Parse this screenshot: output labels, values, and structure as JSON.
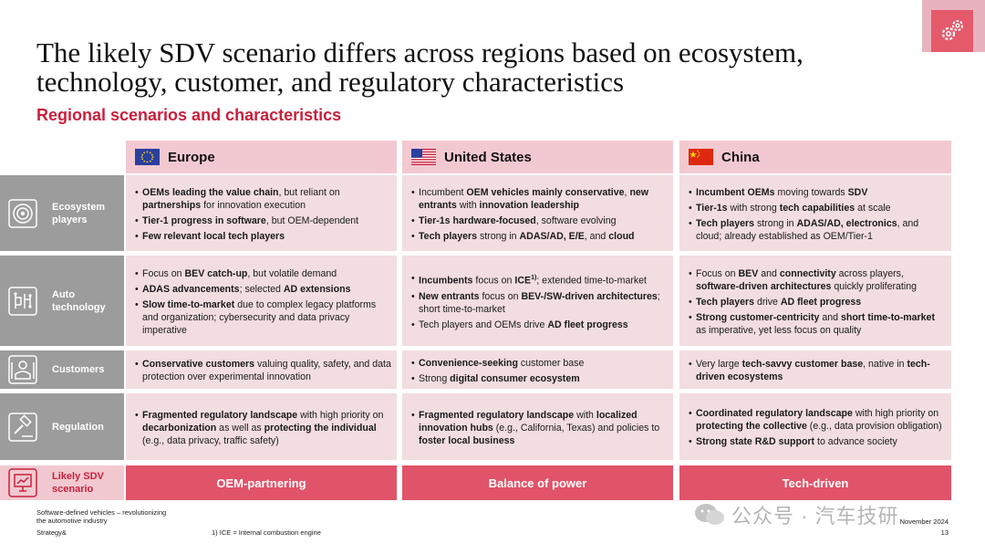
{
  "title": "The likely SDV scenario differs across regions based on ecosystem, technology, customer, and regulatory characteristics",
  "subtitle": "Regional scenarios and characteristics",
  "columns": [
    {
      "label": "Europe",
      "flag": "eu-flag"
    },
    {
      "label": "United States",
      "flag": "us-flag"
    },
    {
      "label": "China",
      "flag": "china-flag"
    }
  ],
  "rows": [
    {
      "label": "Ecosystem players",
      "icon": "ecosystem-icon"
    },
    {
      "label": "Auto technology",
      "icon": "circuit-icon"
    },
    {
      "label": "Customers",
      "icon": "customer-icon"
    },
    {
      "label": "Regulation",
      "icon": "gavel-icon"
    }
  ],
  "scenario": {
    "label": "Likely SDV scenario",
    "icon": "presentation-icon",
    "values": [
      "OEM-partnering",
      "Balance of power",
      "Tech-driven"
    ]
  },
  "cells": {
    "eco_eu": [
      [
        {
          "t": "OEMs leading the value chain",
          "b": true
        },
        {
          "t": ", but reliant on "
        },
        {
          "t": "partnerships",
          "b": true
        },
        {
          "t": " for innovation execution"
        }
      ],
      [
        {
          "t": "Tier-1 progress in software",
          "b": true
        },
        {
          "t": ", but OEM-dependent"
        }
      ],
      [
        {
          "t": "Few relevant local tech players",
          "b": true
        }
      ]
    ],
    "eco_us": [
      [
        {
          "t": "Incumbent "
        },
        {
          "t": "OEM vehicles mainly conservative",
          "b": true
        },
        {
          "t": ", "
        },
        {
          "t": "new entrants",
          "b": true
        },
        {
          "t": " with "
        },
        {
          "t": "innovation leadership",
          "b": true
        }
      ],
      [
        {
          "t": "Tier-1s hardware-focused",
          "b": true
        },
        {
          "t": ", software evolving"
        }
      ],
      [
        {
          "t": "Tech players",
          "b": true
        },
        {
          "t": " strong in "
        },
        {
          "t": "ADAS/AD, E/E",
          "b": true
        },
        {
          "t": ", and "
        },
        {
          "t": "cloud",
          "b": true
        }
      ]
    ],
    "eco_cn": [
      [
        {
          "t": "Incumbent OEMs",
          "b": true
        },
        {
          "t": " moving towards "
        },
        {
          "t": "SDV",
          "b": true
        }
      ],
      [
        {
          "t": "Tier-1s",
          "b": true
        },
        {
          "t": " with strong "
        },
        {
          "t": "tech capabilities",
          "b": true
        },
        {
          "t": " at scale"
        }
      ],
      [
        {
          "t": "Tech players",
          "b": true
        },
        {
          "t": " strong in "
        },
        {
          "t": "ADAS/AD, electronics",
          "b": true
        },
        {
          "t": ", and cloud; already established as OEM/Tier-1"
        }
      ]
    ],
    "tech_eu": [
      [
        {
          "t": "Focus on "
        },
        {
          "t": "BEV catch-up",
          "b": true
        },
        {
          "t": ", but volatile demand"
        }
      ],
      [
        {
          "t": "ADAS advancements",
          "b": true
        },
        {
          "t": "; selected "
        },
        {
          "t": "AD extensions",
          "b": true
        }
      ],
      [
        {
          "t": "Slow time-to-market",
          "b": true
        },
        {
          "t": " due to complex legacy platforms and organization; cybersecurity and data privacy imperative"
        }
      ]
    ],
    "tech_us": [
      [
        {
          "t": "Incumbents",
          "b": true
        },
        {
          "t": " focus on "
        },
        {
          "t": "ICE",
          "b": true
        },
        {
          "t": "1)",
          "sup": true
        },
        {
          "t": "; extended time-to-market"
        }
      ],
      [
        {
          "t": "New entrants",
          "b": true
        },
        {
          "t": " focus on "
        },
        {
          "t": "BEV-/SW-driven architectures",
          "b": true
        },
        {
          "t": "; short time-to-market"
        }
      ],
      [
        {
          "t": "Tech players and OEMs drive "
        },
        {
          "t": "AD fleet progress",
          "b": true
        }
      ]
    ],
    "tech_cn": [
      [
        {
          "t": "Focus on "
        },
        {
          "t": "BEV",
          "b": true
        },
        {
          "t": " and "
        },
        {
          "t": "connectivity",
          "b": true
        },
        {
          "t": " across players, "
        },
        {
          "t": "software-driven architectures",
          "b": true
        },
        {
          "t": " quickly proliferating"
        }
      ],
      [
        {
          "t": "Tech players",
          "b": true
        },
        {
          "t": " drive "
        },
        {
          "t": "AD fleet progress",
          "b": true
        }
      ],
      [
        {
          "t": "Strong customer-centricity",
          "b": true
        },
        {
          "t": " and "
        },
        {
          "t": "short time-to-market",
          "b": true
        },
        {
          "t": " as imperative, yet less focus on quality"
        }
      ]
    ],
    "cust_eu": [
      [
        {
          "t": "Conservative customers",
          "b": true
        },
        {
          "t": " valuing quality, safety, and data protection over experimental innovation"
        }
      ]
    ],
    "cust_us": [
      [
        {
          "t": "Convenience-seeking",
          "b": true
        },
        {
          "t": " customer base"
        }
      ],
      [
        {
          "t": "Strong "
        },
        {
          "t": "digital consumer ecosystem",
          "b": true
        }
      ]
    ],
    "cust_cn": [
      [
        {
          "t": "Very large "
        },
        {
          "t": "tech-savvy customer base",
          "b": true
        },
        {
          "t": ", native in "
        },
        {
          "t": "tech-driven ecosystems",
          "b": true
        }
      ]
    ],
    "reg_eu": [
      [
        {
          "t": "Fragmented regulatory landscape",
          "b": true
        },
        {
          "t": " with high priority on "
        },
        {
          "t": "decarbonization",
          "b": true
        },
        {
          "t": " as well as "
        },
        {
          "t": "protecting the individual",
          "b": true
        },
        {
          "t": " (e.g., data privacy, traffic safety)"
        }
      ]
    ],
    "reg_us": [
      [
        {
          "t": "Fragmented regulatory landscape",
          "b": true
        },
        {
          "t": " with "
        },
        {
          "t": "localized innovation hubs",
          "b": true
        },
        {
          "t": " (e.g., California, Texas) and policies to "
        },
        {
          "t": "foster local business",
          "b": true
        }
      ]
    ],
    "reg_cn": [
      [
        {
          "t": "Coordinated regulatory landscape",
          "b": true
        },
        {
          "t": " with high priority on "
        },
        {
          "t": "protecting the collective",
          "b": true
        },
        {
          "t": " (e.g., data provision obligation)"
        }
      ],
      [
        {
          "t": "Strong state R&D support",
          "b": true
        },
        {
          "t": " to advance society"
        }
      ]
    ]
  },
  "footer": {
    "left_line1": "Software-defined vehicles – revolutionizing",
    "left_line2": "the automotive industry",
    "brand": "Strategy&",
    "footnote": "1) ICE = Internal combustion engine",
    "date": "November 2024",
    "page": "13"
  },
  "watermark": "公众号 · 汽车技研",
  "colors": {
    "accent_red": "#c8203c",
    "scenario_bar": "#e15368",
    "header_pink": "#f2c9d1",
    "cell_pink": "#f2dde1",
    "label_gray": "#9c9c9c"
  }
}
